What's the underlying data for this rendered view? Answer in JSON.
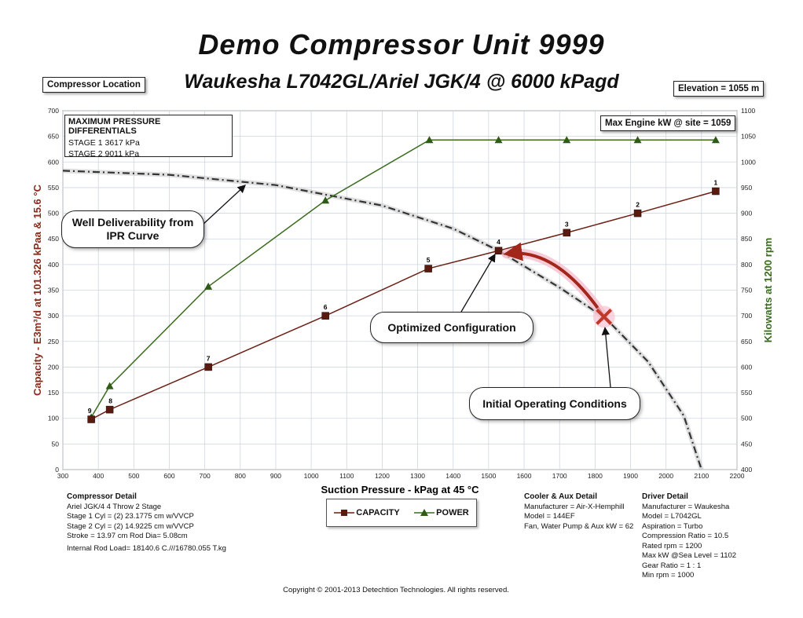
{
  "title": "Demo Compressor Unit 9999",
  "subtitle": "Waukesha L7042GL/Ariel JGK/4 @ 6000 kPagd",
  "compressor_location_label": "Compressor Location",
  "elevation_label": "Elevation = 1055 m",
  "max_engine_label": "Max Engine kW @ site = 1059",
  "pressure_box": {
    "header": "MAXIMUM PRESSURE DIFFERENTIALS",
    "stage1": "STAGE 1   3617 kPa",
    "stage2": "STAGE 2   9011 kPa"
  },
  "callouts": {
    "well": "Well Deliverability from IPR Curve",
    "optimized": "Optimized Configuration",
    "initial": "Initial Operating Conditions"
  },
  "legend": {
    "capacity": "CAPACITY",
    "power": "POWER"
  },
  "compressor_detail": {
    "header": "Compressor Detail",
    "lines": [
      "Ariel JGK/4   4 Throw  2 Stage",
      "Stage 1 Cyl = (2) 23.1775 cm w/VVCP",
      "Stage 2 Cyl = (2) 14.9225 cm w/VVCP",
      "Stroke = 13.97 cm Rod Dia= 5.08cm",
      "Internal Rod Load= 18140.6 C.///16780.055 T.kg"
    ]
  },
  "cooler_detail": {
    "header": "Cooler & Aux Detail",
    "lines": [
      "Manufacturer = Air-X-Hemphill",
      "Model = 144EF",
      "Fan, Water Pump & Aux kW = 62"
    ]
  },
  "driver_detail": {
    "header": "Driver Detail",
    "lines": [
      "Manufacturer = Waukesha",
      "Model = L7042GL",
      "Aspiration = Turbo",
      "Compression Ratio = 10.5",
      "Rated rpm = 1200",
      "Max kW @Sea Level = 1102",
      "Gear Ratio = 1 : 1",
      "Min rpm = 1000"
    ]
  },
  "copyright": "Copyright © 2001-2013 Detechtion Technologies. All rights reserved.",
  "chart_data": {
    "type": "line",
    "xlabel": "Suction Pressure - kPag at 45 °C",
    "ylabel_left": "Capacity - E3m³/d at 101.326 kPaa & 15.6 °C",
    "ylabel_right": "Kilowatts at 1200 rpm",
    "xlim": [
      300,
      2200
    ],
    "xticks": [
      300,
      400,
      500,
      600,
      700,
      800,
      900,
      1000,
      1100,
      1200,
      1300,
      1400,
      1500,
      1600,
      1700,
      1800,
      1900,
      2000,
      2100,
      2200
    ],
    "ylim_left": [
      0,
      700
    ],
    "yticks_left": [
      0,
      50,
      100,
      150,
      200,
      250,
      300,
      350,
      400,
      450,
      500,
      550,
      600,
      650,
      700
    ],
    "ylim_right": [
      400,
      1100
    ],
    "yticks_right": [
      400,
      450,
      500,
      550,
      600,
      650,
      700,
      750,
      800,
      850,
      900,
      950,
      1000,
      1050,
      1100
    ],
    "grid": true,
    "series": [
      {
        "name": "CAPACITY",
        "axis": "left",
        "color": "#6b1f14",
        "marker": "square",
        "points": [
          {
            "label": "9",
            "x": 380,
            "y": 98
          },
          {
            "label": "8",
            "x": 432,
            "y": 117
          },
          {
            "label": "7",
            "x": 710,
            "y": 200
          },
          {
            "label": "6",
            "x": 1040,
            "y": 300
          },
          {
            "label": "5",
            "x": 1330,
            "y": 392
          },
          {
            "label": "4",
            "x": 1528,
            "y": 427
          },
          {
            "label": "3",
            "x": 1720,
            "y": 462
          },
          {
            "label": "2",
            "x": 1920,
            "y": 500
          },
          {
            "label": "1",
            "x": 2140,
            "y": 543
          }
        ]
      },
      {
        "name": "POWER",
        "axis": "right",
        "color": "#3a6b1e",
        "marker": "triangle",
        "points": [
          {
            "x": 380,
            "y": 502
          },
          {
            "x": 432,
            "y": 563
          },
          {
            "x": 710,
            "y": 757
          },
          {
            "x": 1040,
            "y": 925
          },
          {
            "x": 1333,
            "y": 1043
          },
          {
            "x": 1528,
            "y": 1043
          },
          {
            "x": 1720,
            "y": 1043
          },
          {
            "x": 1920,
            "y": 1043
          },
          {
            "x": 2140,
            "y": 1043
          }
        ]
      },
      {
        "name": "Well Deliverability",
        "axis": "left",
        "color": "#333333",
        "style": "dash-dot",
        "points": [
          {
            "x": 300,
            "y": 583
          },
          {
            "x": 600,
            "y": 575
          },
          {
            "x": 900,
            "y": 555
          },
          {
            "x": 1200,
            "y": 515
          },
          {
            "x": 1400,
            "y": 470
          },
          {
            "x": 1528,
            "y": 427
          },
          {
            "x": 1700,
            "y": 355
          },
          {
            "x": 1830,
            "y": 295
          },
          {
            "x": 1950,
            "y": 210
          },
          {
            "x": 2050,
            "y": 105
          },
          {
            "x": 2100,
            "y": 0
          }
        ]
      }
    ],
    "annotations": {
      "initial_point": {
        "x": 1825,
        "y": 298
      },
      "optimized_point": {
        "x": 1528,
        "y": 427
      }
    }
  }
}
